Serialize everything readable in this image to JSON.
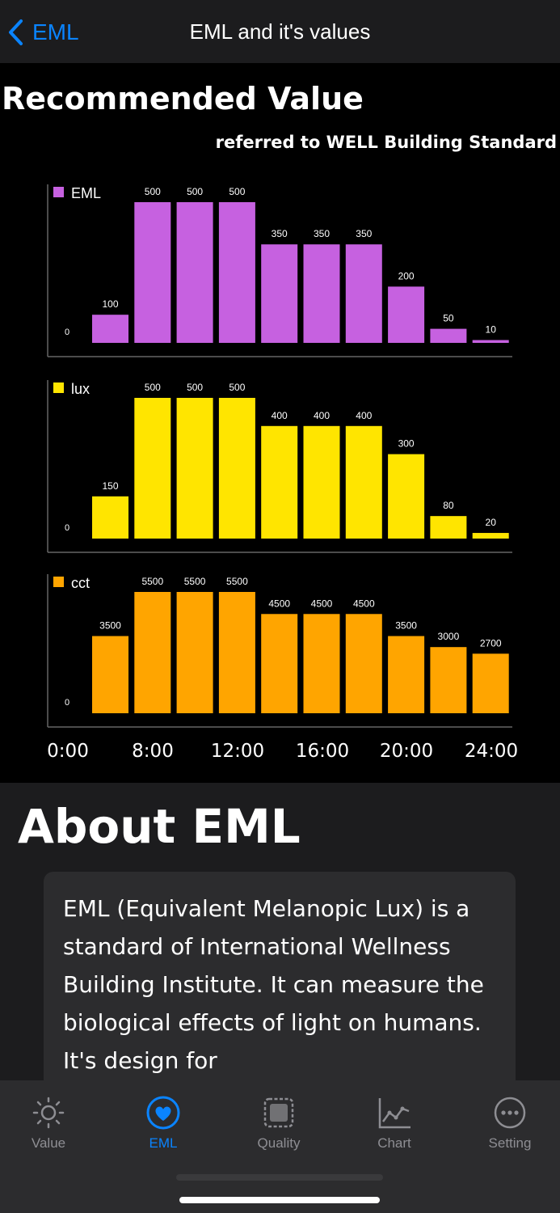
{
  "nav": {
    "back_label": "EML",
    "title": "EML and it's values"
  },
  "recommended": {
    "title": "Recommended Value",
    "subtitle": "referred to WELL Building Standard"
  },
  "chart_data": [
    {
      "type": "bar",
      "name": "EML",
      "color": "#c661e0",
      "ylabel_zero": "0",
      "values": [
        100,
        500,
        500,
        500,
        350,
        350,
        350,
        200,
        50,
        10
      ],
      "ylim": [
        0,
        500
      ]
    },
    {
      "type": "bar",
      "name": "lux",
      "color": "#ffe500",
      "ylabel_zero": "0",
      "values": [
        150,
        500,
        500,
        500,
        400,
        400,
        400,
        300,
        80,
        20
      ],
      "ylim": [
        0,
        500
      ]
    },
    {
      "type": "bar",
      "name": "cct",
      "color": "#ffa500",
      "ylabel_zero": "0",
      "values": [
        3500,
        5500,
        5500,
        5500,
        4500,
        4500,
        4500,
        3500,
        3000,
        2700
      ],
      "ylim": [
        0,
        5500
      ]
    }
  ],
  "x_axis": {
    "ticks": [
      "0:00",
      "8:00",
      "12:00",
      "16:00",
      "20:00",
      "24:00"
    ]
  },
  "about": {
    "title": "About EML",
    "text": "EML (Equivalent Melanopic Lux) is a standard of International Wellness Building Institute. It can measure the biological effects of light on humans. It's design for"
  },
  "tabs": [
    {
      "label": "Value",
      "icon": "sun-icon"
    },
    {
      "label": "EML",
      "icon": "heart-icon",
      "active": true
    },
    {
      "label": "Quality",
      "icon": "frame-icon"
    },
    {
      "label": "Chart",
      "icon": "line-chart-icon"
    },
    {
      "label": "Setting",
      "icon": "ellipsis-icon"
    }
  ]
}
